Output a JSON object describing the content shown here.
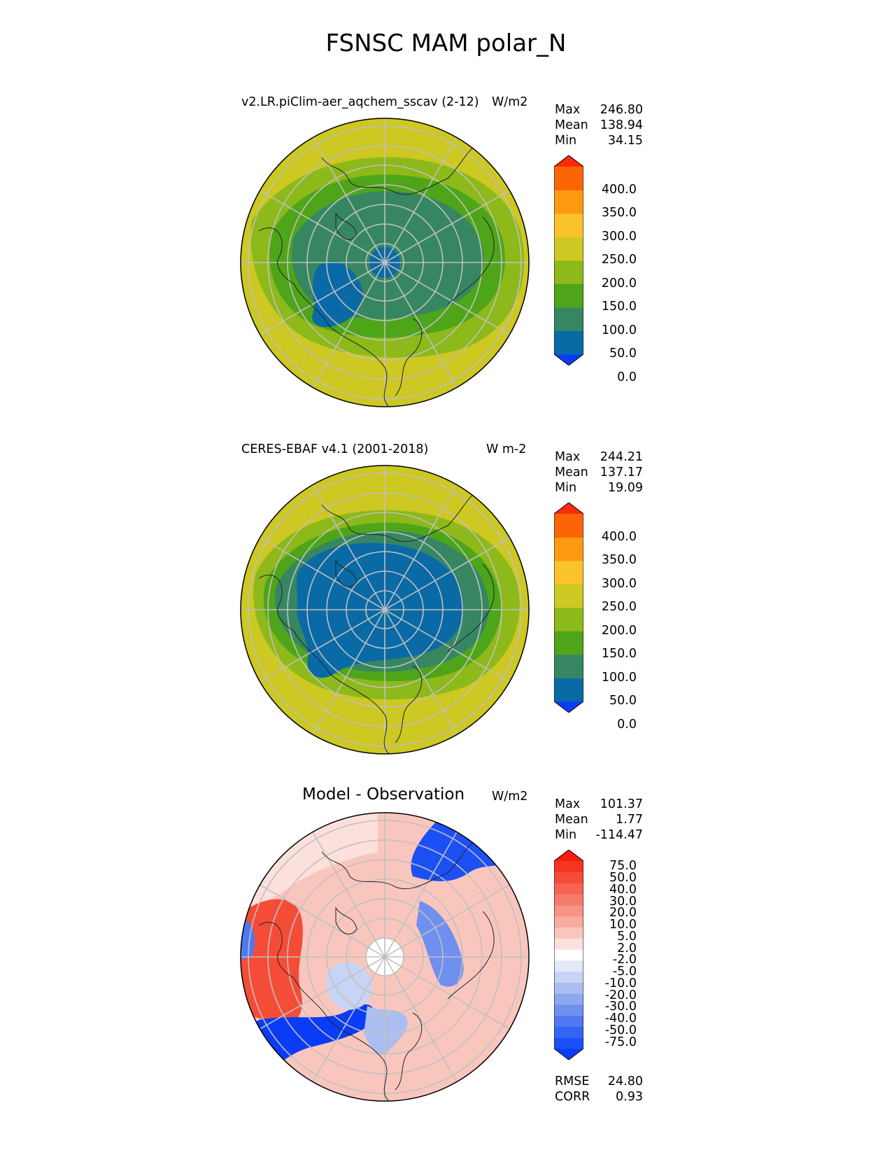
{
  "figure_title": "FSNSC MAM polar_N",
  "panels": [
    {
      "title": "v2.LR.piClim-aer_aqchem_sscav (2-12)",
      "units": "W/m2",
      "stats": {
        "max_label": "Max",
        "max": "246.80",
        "mean_label": "Mean",
        "mean": "138.94",
        "min_label": "Min",
        "min": "34.15"
      },
      "colorbar": {
        "colors": [
          "#0b3cf5",
          "#0a6aa6",
          "#368761",
          "#4ea519",
          "#8db91a",
          "#cdc822",
          "#fbc32b",
          "#fd9a10",
          "#fd6405",
          "#fc2b0a"
        ],
        "ticks": [
          "400.0",
          "350.0",
          "300.0",
          "250.0",
          "200.0",
          "150.0",
          "100.0",
          "50.0",
          "0.0"
        ]
      }
    },
    {
      "title": "CERES-EBAF v4.1 (2001-2018)",
      "units": "W m-2",
      "stats": {
        "max_label": "Max",
        "max": "244.21",
        "mean_label": "Mean",
        "mean": "137.17",
        "min_label": "Min",
        "min": "19.09"
      },
      "colorbar": {
        "colors": [
          "#0b3cf5",
          "#0a6aa6",
          "#368761",
          "#4ea519",
          "#8db91a",
          "#cdc822",
          "#fbc32b",
          "#fd9a10",
          "#fd6405",
          "#fc2b0a"
        ],
        "ticks": [
          "400.0",
          "350.0",
          "300.0",
          "250.0",
          "200.0",
          "150.0",
          "100.0",
          "50.0",
          "0.0"
        ]
      }
    },
    {
      "title": "Model - Observation",
      "units": "W/m2",
      "stats": {
        "max_label": "Max",
        "max": "101.37",
        "mean_label": "Mean",
        "mean": "1.77",
        "min_label": "Min",
        "min": "-114.47"
      },
      "metrics": {
        "rmse_label": "RMSE",
        "rmse": "24.80",
        "corr_label": "CORR",
        "corr": "0.93"
      },
      "colorbar": {
        "colors": [
          "#0a3cf5",
          "#1c50f5",
          "#3464f3",
          "#5078f0",
          "#6f90ee",
          "#8ea8ee",
          "#aabff0",
          "#c8d4f5",
          "#e2e8f8",
          "#ffffff",
          "#fbe0dc",
          "#f9c6be",
          "#f7aca0",
          "#f69485",
          "#f57c6b",
          "#f56452",
          "#f54c38",
          "#f43520",
          "#f81e0d"
        ],
        "ticks": [
          "75.0",
          "50.0",
          "40.0",
          "30.0",
          "20.0",
          "10.0",
          "5.0",
          "2.0",
          "-2.0",
          "-5.0",
          "-10.0",
          "-20.0",
          "-30.0",
          "-40.0",
          "-50.0",
          "-75.0"
        ]
      }
    }
  ]
}
